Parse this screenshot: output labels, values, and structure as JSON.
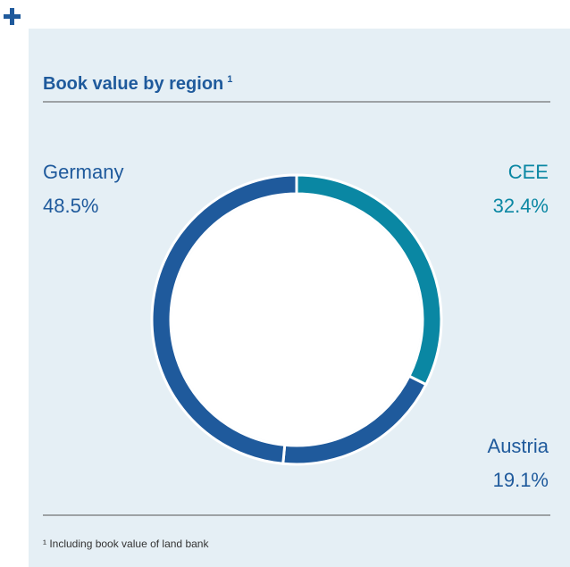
{
  "chart_data": {
    "type": "donut",
    "title": "Book value by region",
    "title_note": "1",
    "footnote": "¹ Including book value of land bank",
    "categories": [
      "CEE",
      "Austria",
      "Germany"
    ],
    "values": [
      32.4,
      19.1,
      48.5
    ],
    "value_labels": [
      "32.4%",
      "19.1%",
      "48.5%"
    ],
    "colors": [
      "#0a87a3",
      "#1f5a9c",
      "#1f5a9c"
    ]
  }
}
